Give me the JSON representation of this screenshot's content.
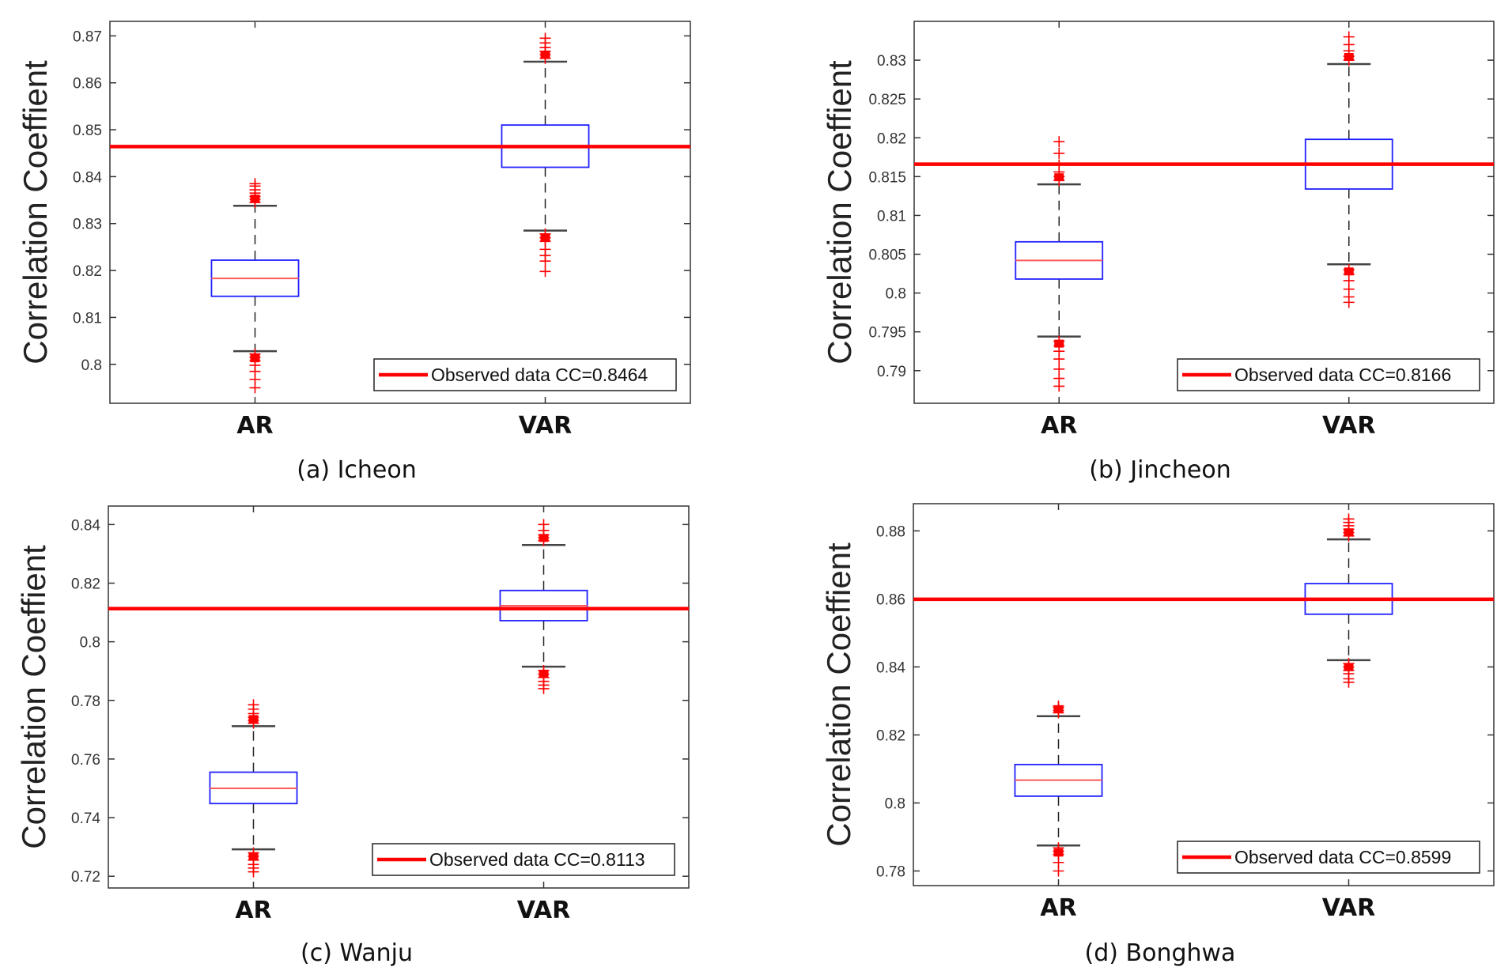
{
  "chart_data": [
    {
      "type": "box",
      "caption": "(a) Icheon",
      "ylabel": "Correlation Coeffient",
      "categories": [
        "AR",
        "VAR"
      ],
      "ylim": [
        0.7917,
        0.8731
      ],
      "yticks": [
        0.8,
        0.81,
        0.82,
        0.83,
        0.84,
        0.85,
        0.86,
        0.87
      ],
      "ytick_labels": [
        "0.8",
        "0.81",
        "0.82",
        "0.83",
        "0.84",
        "0.85",
        "0.86",
        "0.87"
      ],
      "observed": {
        "value": 0.8464,
        "label": "Observed data CC=0.8464"
      },
      "legend_position": "bottom-right",
      "boxes": [
        {
          "name": "AR",
          "whisker_low": 0.8028,
          "q1": 0.8145,
          "median": 0.8183,
          "q3": 0.8222,
          "whisker_high": 0.8338,
          "outliers": [
            0.8345,
            0.8352,
            0.8358,
            0.8365,
            0.8372,
            0.838,
            0.8385,
            0.8022,
            0.8015,
            0.8008,
            0.7998,
            0.7985,
            0.7968,
            0.795
          ]
        },
        {
          "name": "VAR",
          "whisker_low": 0.8285,
          "q1": 0.842,
          "median": 0.8465,
          "q3": 0.851,
          "whisker_high": 0.8645,
          "outliers": [
            0.8652,
            0.866,
            0.8667,
            0.8675,
            0.8685,
            0.8695,
            0.8278,
            0.827,
            0.8262,
            0.8245,
            0.8232,
            0.822,
            0.8198
          ]
        }
      ]
    },
    {
      "type": "box",
      "caption": "(b) Jincheon",
      "ylabel": "Correlation Coeffient",
      "categories": [
        "AR",
        "VAR"
      ],
      "ylim": [
        0.7858,
        0.835
      ],
      "yticks": [
        0.79,
        0.795,
        0.8,
        0.805,
        0.81,
        0.815,
        0.82,
        0.825,
        0.83
      ],
      "ytick_labels": [
        "0.79",
        "0.795",
        "0.8",
        "0.805",
        "0.81",
        "0.815",
        "0.82",
        "0.825",
        "0.83"
      ],
      "observed": {
        "value": 0.8166,
        "label": "Observed data CC=0.8166"
      },
      "legend_position": "bottom-right",
      "boxes": [
        {
          "name": "AR",
          "whisker_low": 0.7944,
          "q1": 0.8018,
          "median": 0.8042,
          "q3": 0.8066,
          "whisker_high": 0.814,
          "outliers": [
            0.8145,
            0.815,
            0.8156,
            0.8165,
            0.818,
            0.8195,
            0.7938,
            0.7932,
            0.7925,
            0.7915,
            0.7902,
            0.789,
            0.788
          ]
        },
        {
          "name": "VAR",
          "whisker_low": 0.8037,
          "q1": 0.8134,
          "median": 0.8166,
          "q3": 0.8198,
          "whisker_high": 0.8295,
          "outliers": [
            0.83,
            0.8305,
            0.8312,
            0.832,
            0.833,
            0.803,
            0.8024,
            0.8016,
            0.8005,
            0.7995,
            0.7988
          ]
        }
      ]
    },
    {
      "type": "box",
      "caption": "(c) Wanju",
      "ylabel": "Correlation Coeffient",
      "categories": [
        "AR",
        "VAR"
      ],
      "ylim": [
        0.716,
        0.8463
      ],
      "yticks": [
        0.72,
        0.74,
        0.76,
        0.78,
        0.8,
        0.82,
        0.84
      ],
      "ytick_labels": [
        "0.72",
        "0.74",
        "0.76",
        "0.78",
        "0.8",
        "0.82",
        "0.84"
      ],
      "observed": {
        "value": 0.8113,
        "label": "Observed data CC=0.8113"
      },
      "legend_position": "bottom-right",
      "boxes": [
        {
          "name": "AR",
          "whisker_low": 0.7292,
          "q1": 0.7448,
          "median": 0.75,
          "q3": 0.7555,
          "whisker_high": 0.7712,
          "outliers": [
            0.7722,
            0.7732,
            0.7742,
            0.7755,
            0.777,
            0.7785,
            0.728,
            0.7268,
            0.7255,
            0.724,
            0.7228,
            0.7215
          ]
        },
        {
          "name": "VAR",
          "whisker_low": 0.7915,
          "q1": 0.8072,
          "median": 0.8123,
          "q3": 0.8175,
          "whisker_high": 0.833,
          "outliers": [
            0.8345,
            0.8355,
            0.8365,
            0.838,
            0.84,
            0.7902,
            0.789,
            0.7878,
            0.7865,
            0.7852,
            0.784
          ]
        }
      ]
    },
    {
      "type": "box",
      "caption": "(d) Bonghwa",
      "ylabel": "Correlation Coeffient",
      "categories": [
        "AR",
        "VAR"
      ],
      "ylim": [
        0.7757,
        0.888
      ],
      "yticks": [
        0.78,
        0.8,
        0.82,
        0.84,
        0.86,
        0.88
      ],
      "ytick_labels": [
        "0.78",
        "0.8",
        "0.82",
        "0.84",
        "0.86",
        "0.88"
      ],
      "observed": {
        "value": 0.8599,
        "label": "Observed data CC=0.8599"
      },
      "legend_position": "bottom-right",
      "boxes": [
        {
          "name": "AR",
          "whisker_low": 0.7875,
          "q1": 0.802,
          "median": 0.8067,
          "q3": 0.8113,
          "whisker_high": 0.8255,
          "outliers": [
            0.8265,
            0.8272,
            0.828,
            0.8285,
            0.7868,
            0.7858,
            0.7848,
            0.7825,
            0.78
          ]
        },
        {
          "name": "VAR",
          "whisker_low": 0.842,
          "q1": 0.8555,
          "median": 0.86,
          "q3": 0.8645,
          "whisker_high": 0.8775,
          "outliers": [
            0.8785,
            0.8795,
            0.8805,
            0.8815,
            0.8825,
            0.8835,
            0.841,
            0.84,
            0.839,
            0.838,
            0.8365,
            0.8355
          ]
        }
      ]
    }
  ]
}
